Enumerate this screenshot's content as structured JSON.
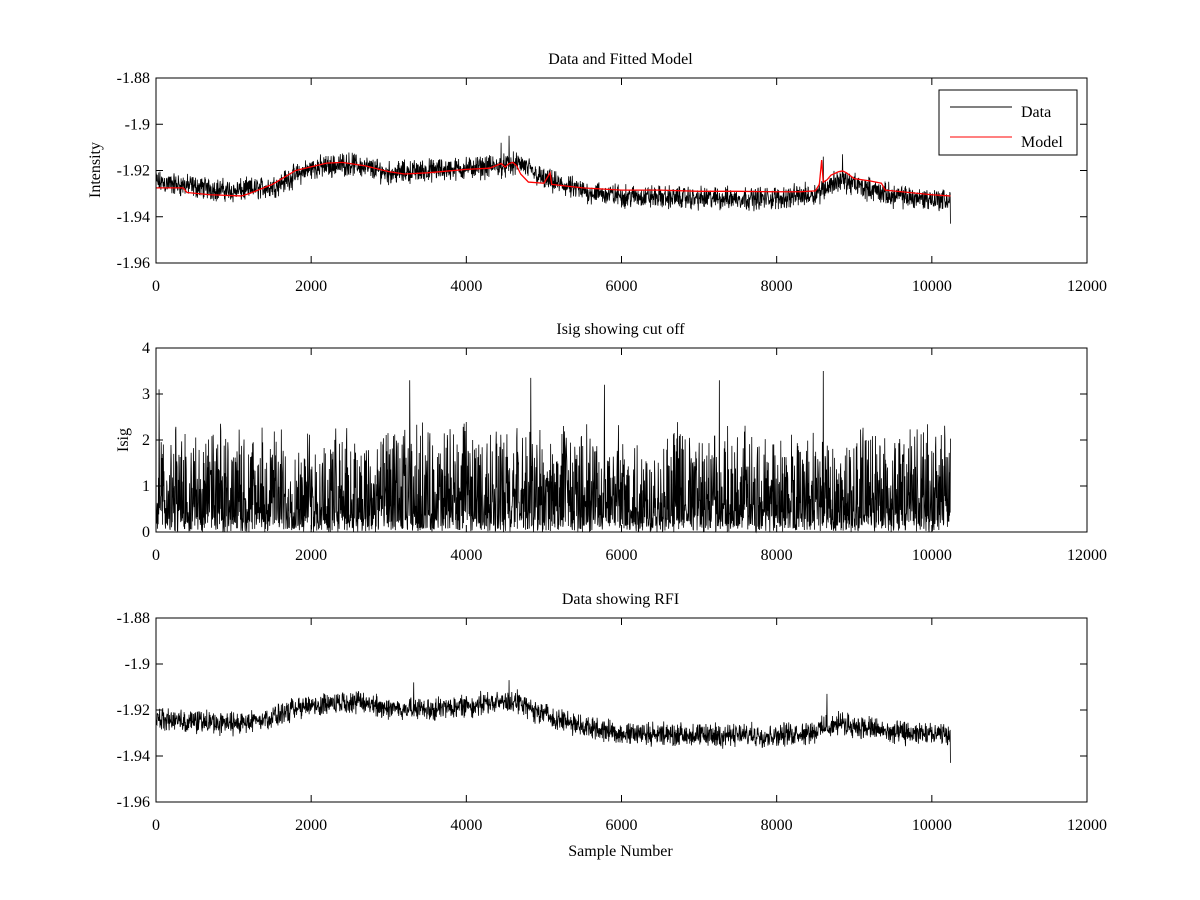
{
  "chart_data": [
    {
      "type": "line",
      "title": "Data and Fitted Model",
      "xlabel": "",
      "ylabel": "Intensity",
      "xlim": [
        0,
        12000
      ],
      "ylim": [
        -1.96,
        -1.88
      ],
      "xticks": [
        0,
        2000,
        4000,
        6000,
        8000,
        10000,
        12000
      ],
      "xtick_labels": [
        "0",
        "2000",
        "4000",
        "6000",
        "8000",
        "10000",
        "12000"
      ],
      "yticks": [
        -1.96,
        -1.94,
        -1.92,
        -1.9,
        -1.88
      ],
      "ytick_labels": [
        "-1.96",
        "-1.94",
        "-1.92",
        "-1.9",
        "-1.88"
      ],
      "legend_position": "top-right",
      "series": [
        {
          "name": "Data",
          "color": "#000000",
          "style": "noisy",
          "n_points": 10240,
          "x_range": [
            0,
            10240
          ],
          "baseline_x": [
            0,
            1000,
            1500,
            2000,
            2500,
            3000,
            3500,
            4000,
            4500,
            4700,
            5000,
            5500,
            6000,
            7000,
            8000,
            8500,
            8800,
            9200,
            9500,
            10240
          ],
          "baseline_y": [
            -1.925,
            -1.929,
            -1.927,
            -1.919,
            -1.917,
            -1.921,
            -1.92,
            -1.919,
            -1.918,
            -1.917,
            -1.924,
            -1.929,
            -1.931,
            -1.932,
            -1.932,
            -1.93,
            -1.924,
            -1.928,
            -1.931,
            -1.933
          ],
          "noise_amplitude": 0.004,
          "spikes": [
            {
              "x": 4550,
              "y": -1.905
            },
            {
              "x": 4450,
              "y": -1.908
            },
            {
              "x": 8600,
              "y": -1.914
            },
            {
              "x": 8850,
              "y": -1.913
            },
            {
              "x": 10240,
              "y": -1.943
            }
          ]
        },
        {
          "name": "Model",
          "color": "#ff0000",
          "style": "line",
          "x": [
            0,
            350,
            400,
            700,
            1100,
            1200,
            1500,
            1800,
            2200,
            2400,
            2700,
            3000,
            3200,
            3500,
            4000,
            4300,
            4450,
            4500,
            4550,
            4600,
            4650,
            4700,
            4800,
            5000,
            5080,
            5100,
            5500,
            6000,
            6500,
            7000,
            7500,
            8000,
            8300,
            8500,
            8550,
            8580,
            8600,
            8650,
            8700,
            8800,
            8850,
            8900,
            9000,
            9200,
            9350,
            9400,
            10000,
            10240
          ],
          "y": [
            -1.9275,
            -1.9275,
            -1.9295,
            -1.9305,
            -1.931,
            -1.93,
            -1.926,
            -1.92,
            -1.9168,
            -1.9165,
            -1.918,
            -1.9205,
            -1.9215,
            -1.921,
            -1.9195,
            -1.919,
            -1.917,
            -1.9185,
            -1.917,
            -1.9165,
            -1.918,
            -1.9215,
            -1.925,
            -1.9255,
            -1.921,
            -1.926,
            -1.9275,
            -1.9285,
            -1.9285,
            -1.929,
            -1.929,
            -1.9292,
            -1.9292,
            -1.9288,
            -1.926,
            -1.9155,
            -1.925,
            -1.924,
            -1.922,
            -1.9205,
            -1.9202,
            -1.921,
            -1.9235,
            -1.9245,
            -1.9255,
            -1.9285,
            -1.9305,
            -1.931
          ]
        }
      ]
    },
    {
      "type": "line",
      "title": "Isig showing cut off",
      "xlabel": "",
      "ylabel": "Isig",
      "xlim": [
        0,
        12000
      ],
      "ylim": [
        0,
        4
      ],
      "xticks": [
        0,
        2000,
        4000,
        6000,
        8000,
        10000,
        12000
      ],
      "xtick_labels": [
        "0",
        "2000",
        "4000",
        "6000",
        "8000",
        "10000",
        "12000"
      ],
      "yticks": [
        0,
        1,
        2,
        3,
        4
      ],
      "ytick_labels": [
        "0",
        "1",
        "2",
        "3",
        "4"
      ],
      "series": [
        {
          "name": "Isig",
          "color": "#000000",
          "style": "noisy",
          "n_points": 10240,
          "x_range": [
            0,
            10240
          ],
          "baseline_x": [
            0,
            10240
          ],
          "baseline_y": [
            0.8,
            0.8
          ],
          "noise_amplitude": 0.8,
          "floor": 0.0,
          "spikes": [
            {
              "x": 40,
              "y": 3.1
            },
            {
              "x": 3270,
              "y": 3.3
            },
            {
              "x": 4830,
              "y": 3.35
            },
            {
              "x": 5780,
              "y": 3.2
            },
            {
              "x": 7260,
              "y": 3.3
            },
            {
              "x": 8600,
              "y": 3.5
            }
          ]
        }
      ]
    },
    {
      "type": "line",
      "title": "Data showing RFI",
      "xlabel": "Sample Number",
      "ylabel": "",
      "xlim": [
        0,
        12000
      ],
      "ylim": [
        -1.96,
        -1.88
      ],
      "xticks": [
        0,
        2000,
        4000,
        6000,
        8000,
        10000,
        12000
      ],
      "xtick_labels": [
        "0",
        "2000",
        "4000",
        "6000",
        "8000",
        "10000",
        "12000"
      ],
      "yticks": [
        -1.96,
        -1.94,
        -1.92,
        -1.9,
        -1.88
      ],
      "ytick_labels": [
        "-1.96",
        "-1.94",
        "-1.92",
        "-1.9",
        "-1.88"
      ],
      "series": [
        {
          "name": "Data",
          "color": "#000000",
          "style": "noisy",
          "n_points": 10240,
          "x_range": [
            0,
            10240
          ],
          "baseline_x": [
            0,
            1000,
            1500,
            2000,
            2500,
            3000,
            3500,
            4000,
            4600,
            5000,
            5500,
            6000,
            7000,
            8000,
            8500,
            8800,
            9200,
            9500,
            10240
          ],
          "baseline_y": [
            -1.924,
            -1.926,
            -1.923,
            -1.918,
            -1.916,
            -1.919,
            -1.92,
            -1.918,
            -1.916,
            -1.922,
            -1.927,
            -1.93,
            -1.931,
            -1.931,
            -1.929,
            -1.926,
            -1.928,
            -1.93,
            -1.931
          ],
          "noise_amplitude": 0.004,
          "spikes": [
            {
              "x": 3320,
              "y": -1.908
            },
            {
              "x": 4550,
              "y": -1.907
            },
            {
              "x": 8650,
              "y": -1.913
            },
            {
              "x": 10240,
              "y": -1.943
            }
          ]
        }
      ]
    }
  ]
}
